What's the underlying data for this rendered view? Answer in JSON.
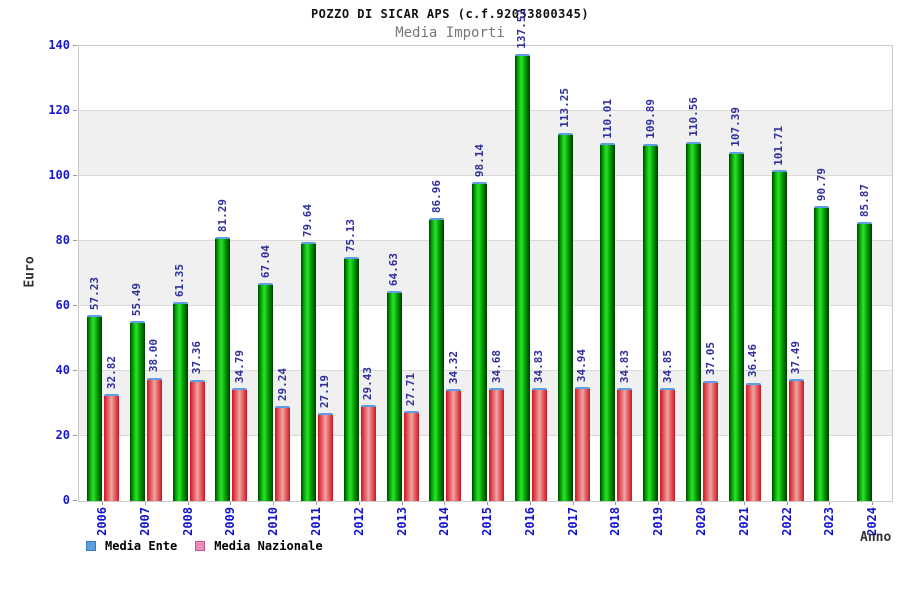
{
  "header": {
    "title": "POZZO DI SICAR APS (c.f.92053800345)",
    "subtitle": "Media Importi"
  },
  "chart_data": {
    "type": "bar",
    "title": "POZZO DI SICAR APS (c.f.92053800345)",
    "subtitle": "Media Importi",
    "xlabel": "Anno",
    "ylabel": "Euro",
    "ylim": [
      0,
      140
    ],
    "yticks": [
      0,
      20,
      40,
      60,
      80,
      100,
      120,
      140
    ],
    "grid": "horizontal",
    "band_colors": [
      "#ffffff",
      "#f0f0f0"
    ],
    "legend_position": "bottom-left",
    "categories": [
      "2006",
      "2007",
      "2008",
      "2009",
      "2010",
      "2011",
      "2012",
      "2013",
      "2014",
      "2015",
      "2016",
      "2017",
      "2018",
      "2019",
      "2020",
      "2021",
      "2022",
      "2023",
      "2024"
    ],
    "series": [
      {
        "name": "Media Ente",
        "color": "#00a000",
        "legend_swatch": "#5aa0dc",
        "values": [
          57.23,
          55.49,
          61.35,
          81.29,
          67.04,
          79.64,
          75.13,
          64.63,
          86.96,
          98.14,
          137.52,
          113.25,
          110.01,
          109.89,
          110.56,
          107.39,
          101.71,
          90.79,
          85.87
        ]
      },
      {
        "name": "Media Nazionale",
        "color": "#e05050",
        "legend_swatch": "#ec8cbe",
        "values": [
          32.82,
          38.0,
          37.36,
          34.79,
          29.24,
          27.19,
          29.43,
          27.71,
          34.32,
          34.68,
          34.83,
          34.94,
          34.83,
          34.85,
          37.05,
          36.46,
          37.49,
          null,
          null
        ]
      }
    ],
    "value_label_color": "#30309c",
    "tick_label_color": "#1414cc"
  },
  "legend": {
    "items": [
      {
        "label": "Media Ente"
      },
      {
        "label": "Media Nazionale"
      }
    ]
  }
}
